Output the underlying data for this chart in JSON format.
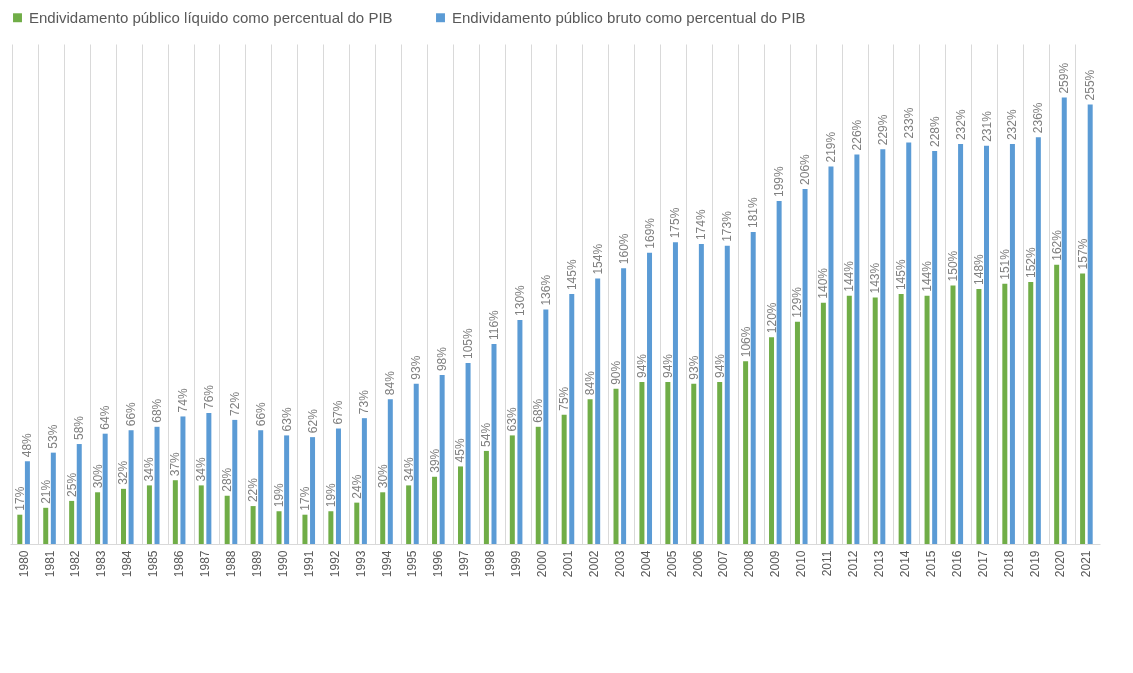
{
  "chart_data": {
    "type": "bar",
    "categories": [
      "1980",
      "1981",
      "1982",
      "1983",
      "1984",
      "1985",
      "1986",
      "1987",
      "1988",
      "1989",
      "1990",
      "1991",
      "1992",
      "1993",
      "1994",
      "1995",
      "1996",
      "1997",
      "1998",
      "1999",
      "2000",
      "2001",
      "2002",
      "2003",
      "2004",
      "2005",
      "2006",
      "2007",
      "2008",
      "2009",
      "2010",
      "2011",
      "2012",
      "2013",
      "2014",
      "2015",
      "2016",
      "2017",
      "2018",
      "2019",
      "2020",
      "2021"
    ],
    "series": [
      {
        "name": "Endividamento público líquido como percentual do PIB",
        "color": "#70ad47",
        "values": [
          17,
          21,
          25,
          30,
          32,
          34,
          37,
          34,
          28,
          22,
          19,
          17,
          19,
          24,
          30,
          34,
          39,
          45,
          54,
          63,
          68,
          75,
          84,
          90,
          94,
          94,
          93,
          94,
          106,
          120,
          129,
          140,
          144,
          143,
          145,
          144,
          150,
          148,
          151,
          152,
          162,
          157
        ],
        "value_labels": [
          "17%",
          "21%",
          "25%",
          "30%",
          "32%",
          "34%",
          "37%",
          "34%",
          "28%",
          "22%",
          "19%",
          "17%",
          "19%",
          "24%",
          "30%",
          "34%",
          "39%",
          "45%",
          "54%",
          "63%",
          "68%",
          "75%",
          "84%",
          "90%",
          "94%",
          "94%",
          "93%",
          "94%",
          "106%",
          "120%",
          "129%",
          "140%",
          "144%",
          "143%",
          "145%",
          "144%",
          "150%",
          "148%",
          "151%",
          "152%",
          "162%",
          "157%"
        ]
      },
      {
        "name": "Endividamento público bruto como percentual do PIB",
        "color": "#5b9bd5",
        "values": [
          48,
          53,
          58,
          64,
          66,
          68,
          74,
          76,
          72,
          66,
          63,
          62,
          67,
          73,
          84,
          93,
          98,
          105,
          116,
          130,
          136,
          145,
          154,
          160,
          169,
          175,
          174,
          173,
          181,
          199,
          206,
          219,
          226,
          229,
          233,
          228,
          232,
          231,
          232,
          236,
          259,
          255
        ],
        "value_labels": [
          "48%",
          "53%",
          "58%",
          "64%",
          "66%",
          "68%",
          "74%",
          "76%",
          "72%",
          "66%",
          "63%",
          "62%",
          "67%",
          "73%",
          "84%",
          "93%",
          "98%",
          "105%",
          "116%",
          "130%",
          "136%",
          "145%",
          "154%",
          "160%",
          "169%",
          "175%",
          "174%",
          "173%",
          "181%",
          "199%",
          "206%",
          "219%",
          "226%",
          "229%",
          "233%",
          "228%",
          "232%",
          "231%",
          "232%",
          "236%",
          "259%",
          "255%"
        ]
      }
    ],
    "grid": "x",
    "legend": "top"
  }
}
